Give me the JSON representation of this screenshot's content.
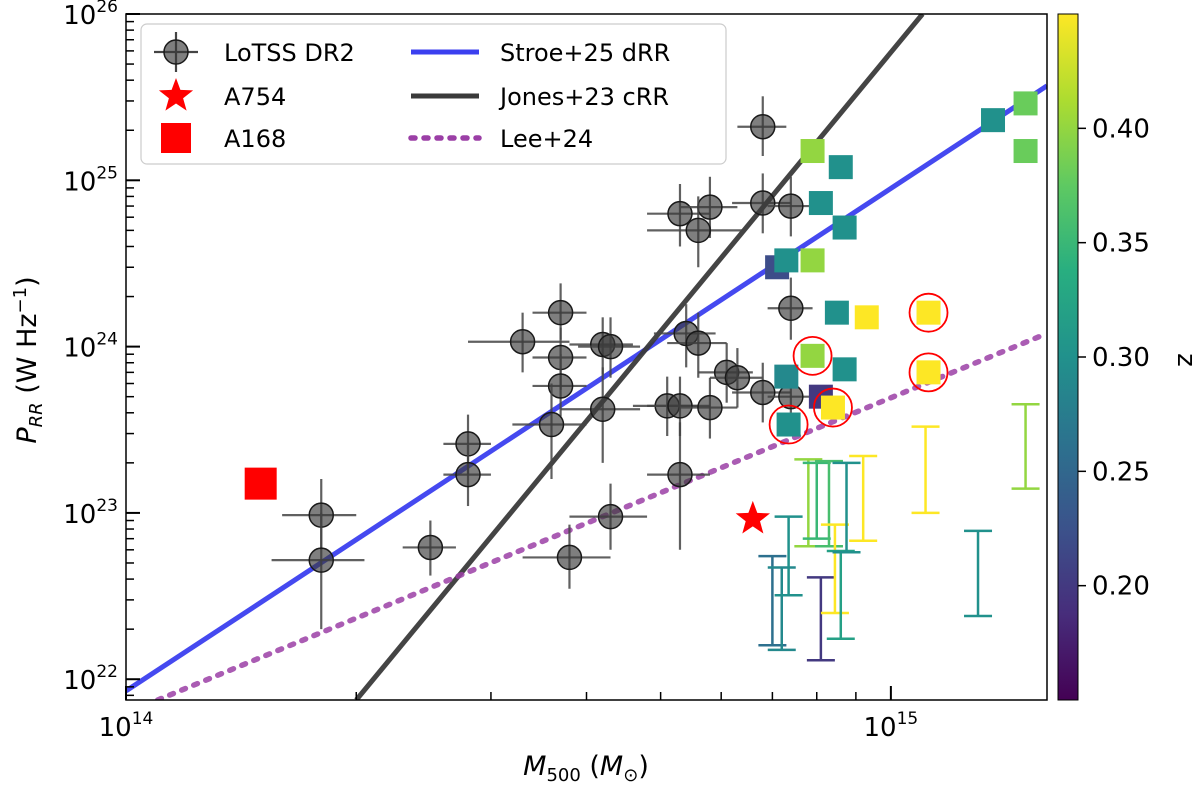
{
  "chart_data": {
    "type": "scatter",
    "xscale": "log",
    "yscale": "log",
    "xlim": [
      100000000000000.0,
      1600000000000000.0
    ],
    "ylim": [
      7.5e+21,
      1e+26
    ],
    "xlabel": "M_500 (M_⊙)",
    "ylabel": "P_RR (W Hz⁻¹)",
    "x_ticks": [
      {
        "value": 100000000000000.0,
        "base": "10",
        "exp": "14"
      },
      {
        "value": 1000000000000000.0,
        "base": "10",
        "exp": "15"
      }
    ],
    "y_ticks": [
      {
        "value": 1e+22,
        "base": "10",
        "exp": "22"
      },
      {
        "value": 1e+23,
        "base": "10",
        "exp": "23"
      },
      {
        "value": 1e+24,
        "base": "10",
        "exp": "24"
      },
      {
        "value": 1e+25,
        "base": "10",
        "exp": "25"
      },
      {
        "value": 1e+26,
        "base": "10",
        "exp": "26"
      }
    ],
    "legend": {
      "position": "top-left",
      "entries": [
        {
          "label": "LoTSS DR2",
          "marker": "circle-errorbar",
          "color": "#444444"
        },
        {
          "label": "A754",
          "marker": "star",
          "color": "#ff0000"
        },
        {
          "label": "A168",
          "marker": "square",
          "color": "#ff0000"
        },
        {
          "label": "Stroe+25 dRR",
          "marker": "line",
          "color": "#3b3fef"
        },
        {
          "label": "Jones+23 cRR",
          "marker": "line",
          "color": "#3a3a3a"
        },
        {
          "label": "Lee+24",
          "marker": "dotted",
          "color": "#9b3fa6"
        }
      ]
    },
    "colorbar": {
      "label": "z",
      "range": [
        0.15,
        0.45
      ],
      "ticks": [
        {
          "value": 0.2,
          "label": "0.20"
        },
        {
          "value": 0.25,
          "label": "0.25"
        },
        {
          "value": 0.3,
          "label": "0.30"
        },
        {
          "value": 0.35,
          "label": "0.35"
        },
        {
          "value": 0.4,
          "label": "0.40"
        }
      ]
    },
    "lines": [
      {
        "name": "Stroe+25 dRR",
        "color": "#3b3fef",
        "style": "solid",
        "points": [
          [
            100000000000000.0,
            8.5e+21
          ],
          [
            1600000000000000.0,
            3.7e+25
          ]
        ]
      },
      {
        "name": "Jones+23 cRR",
        "color": "#3a3a3a",
        "style": "solid",
        "points": [
          [
            200000000000000.0,
            7.5e+21
          ],
          [
            1100000000000000.0,
            1e+26
          ]
        ]
      },
      {
        "name": "Lee+24",
        "color": "#9b3fa6",
        "style": "dotted",
        "points": [
          [
            110000000000000.0,
            7.5e+21
          ],
          [
            1600000000000000.0,
            1.2e+24
          ]
        ]
      }
    ],
    "lotss": [
      {
        "x": 180000000000000.0,
        "y": 9.7e+22,
        "xerr": [
          160000000000000.0,
          200000000000000.0
        ],
        "yerr": [
          6e+22,
          1.6e+23
        ]
      },
      {
        "x": 180000000000000.0,
        "y": 5.2e+22,
        "xerr": [
          155000000000000.0,
          205000000000000.0
        ],
        "yerr": [
          2e+22,
          1e+23
        ]
      },
      {
        "x": 250000000000000.0,
        "y": 6.2e+22,
        "xerr": [
          230000000000000.0,
          270000000000000.0
        ],
        "yerr": [
          4.2e+22,
          9e+22
        ]
      },
      {
        "x": 280000000000000.0,
        "y": 2.6e+23,
        "xerr": [
          260000000000000.0,
          300000000000000.0
        ],
        "yerr": [
          1.7e+23,
          3.9e+23
        ]
      },
      {
        "x": 280000000000000.0,
        "y": 1.7e+23,
        "xerr": [
          260000000000000.0,
          300000000000000.0
        ],
        "yerr": [
          1.1e+23,
          2.6e+23
        ]
      },
      {
        "x": 330000000000000.0,
        "y": 1.07e+24,
        "xerr": [
          280000000000000.0,
          380000000000000.0
        ],
        "yerr": [
          7e+23,
          1.6e+24
        ]
      },
      {
        "x": 370000000000000.0,
        "y": 1.6e+24,
        "xerr": [
          340000000000000.0,
          400000000000000.0
        ],
        "yerr": [
          1.1e+24,
          2.4e+24
        ]
      },
      {
        "x": 370000000000000.0,
        "y": 8.6e+23,
        "xerr": [
          340000000000000.0,
          400000000000000.0
        ],
        "yerr": [
          5.5e+23,
          1.3e+24
        ]
      },
      {
        "x": 370000000000000.0,
        "y": 5.8e+23,
        "xerr": [
          340000000000000.0,
          400000000000000.0
        ],
        "yerr": [
          3.8e+23,
          9e+23
        ]
      },
      {
        "x": 360000000000000.0,
        "y": 3.4e+23,
        "xerr": [
          320000000000000.0,
          400000000000000.0
        ],
        "yerr": [
          1.6e+23,
          6e+23
        ]
      },
      {
        "x": 380000000000000.0,
        "y": 5.4e+22,
        "xerr": [
          330000000000000.0,
          430000000000000.0
        ],
        "yerr": [
          3.5e+22,
          8.5e+22
        ]
      },
      {
        "x": 420000000000000.0,
        "y": 1.03e+24,
        "xerr": [
          380000000000000.0,
          460000000000000.0
        ],
        "yerr": [
          6.8e+23,
          1.5e+24
        ]
      },
      {
        "x": 430000000000000.0,
        "y": 1e+24,
        "xerr": [
          390000000000000.0,
          470000000000000.0
        ],
        "yerr": [
          6.5e+23,
          1.5e+24
        ]
      },
      {
        "x": 420000000000000.0,
        "y": 4.2e+23,
        "xerr": [
          370000000000000.0,
          470000000000000.0
        ],
        "yerr": [
          2e+23,
          7.5e+23
        ]
      },
      {
        "x": 430000000000000.0,
        "y": 9.5e+22,
        "xerr": [
          380000000000000.0,
          480000000000000.0
        ],
        "yerr": [
          6e+22,
          1.5e+23
        ]
      },
      {
        "x": 510000000000000.0,
        "y": 4.4e+23,
        "xerr": [
          460000000000000.0,
          560000000000000.0
        ],
        "yerr": [
          2.9e+23,
          6.6e+23
        ]
      },
      {
        "x": 530000000000000.0,
        "y": 4.4e+23,
        "xerr": [
          480000000000000.0,
          580000000000000.0
        ],
        "yerr": [
          2.9e+23,
          6.6e+23
        ]
      },
      {
        "x": 530000000000000.0,
        "y": 1.7e+23,
        "xerr": [
          480000000000000.0,
          580000000000000.0
        ],
        "yerr": [
          6e+22,
          3.5e+23
        ]
      },
      {
        "x": 540000000000000.0,
        "y": 1.2e+24,
        "xerr": [
          490000000000000.0,
          590000000000000.0
        ],
        "yerr": [
          7.5e+23,
          1.8e+24
        ]
      },
      {
        "x": 560000000000000.0,
        "y": 1.05e+24,
        "xerr": [
          510000000000000.0,
          610000000000000.0
        ],
        "yerr": [
          6.5e+23,
          1.6e+24
        ]
      },
      {
        "x": 580000000000000.0,
        "y": 4.3e+23,
        "xerr": [
          530000000000000.0,
          630000000000000.0
        ],
        "yerr": [
          2.8e+23,
          6.5e+23
        ]
      },
      {
        "x": 530000000000000.0,
        "y": 6.3e+24,
        "xerr": [
          480000000000000.0,
          580000000000000.0
        ],
        "yerr": [
          4e+24,
          9.5e+24
        ]
      },
      {
        "x": 580000000000000.0,
        "y": 6.9e+24,
        "xerr": [
          530000000000000.0,
          630000000000000.0
        ],
        "yerr": [
          4.5e+24,
          1.05e+25
        ]
      },
      {
        "x": 560000000000000.0,
        "y": 5e+24,
        "xerr": [
          480000000000000.0,
          640000000000000.0
        ],
        "yerr": [
          3e+24,
          8e+24
        ]
      },
      {
        "x": 610000000000000.0,
        "y": 7e+23,
        "xerr": [
          560000000000000.0,
          660000000000000.0
        ],
        "yerr": [
          4.6e+23,
          1.05e+24
        ]
      },
      {
        "x": 630000000000000.0,
        "y": 6.5e+23,
        "xerr": [
          580000000000000.0,
          680000000000000.0
        ],
        "yerr": [
          4.3e+23,
          9.8e+23
        ]
      },
      {
        "x": 680000000000000.0,
        "y": 5.3e+23,
        "xerr": [
          620000000000000.0,
          740000000000000.0
        ],
        "yerr": [
          3.5e+23,
          8e+23
        ]
      },
      {
        "x": 680000000000000.0,
        "y": 2.1e+25,
        "xerr": [
          630000000000000.0,
          730000000000000.0
        ],
        "yerr": [
          1.4e+25,
          3.2e+25
        ]
      },
      {
        "x": 680000000000000.0,
        "y": 7.3e+24,
        "xerr": [
          620000000000000.0,
          740000000000000.0
        ],
        "yerr": [
          4.8e+24,
          1.1e+25
        ]
      },
      {
        "x": 740000000000000.0,
        "y": 7e+24,
        "xerr": [
          690000000000000.0,
          790000000000000.0
        ],
        "yerr": [
          4.6e+24,
          1.05e+25
        ]
      },
      {
        "x": 740000000000000.0,
        "y": 1.7e+24,
        "xerr": [
          690000000000000.0,
          790000000000000.0
        ],
        "yerr": [
          1.1e+24,
          2.6e+24
        ]
      },
      {
        "x": 740000000000000.0,
        "y": 5e+23,
        "xerr": [
          690000000000000.0,
          790000000000000.0
        ],
        "yerr": [
          3.3e+23,
          7.5e+23
        ]
      }
    ],
    "squares": [
      {
        "x": 150000000000000.0,
        "y": 1.5e+23,
        "z": null,
        "color": "#ff0000"
      },
      {
        "x": 710000000000000.0,
        "y": 3e+24,
        "z": 0.22
      },
      {
        "x": 730000000000000.0,
        "y": 3.3e+24,
        "z": 0.3
      },
      {
        "x": 730000000000000.0,
        "y": 6.6e+23,
        "z": 0.29
      },
      {
        "x": 735000000000000.0,
        "y": 3.4e+23,
        "z": 0.3
      },
      {
        "x": 790000000000000.0,
        "y": 1.5e+25,
        "z": 0.4
      },
      {
        "x": 790000000000000.0,
        "y": 3.3e+24,
        "z": 0.4
      },
      {
        "x": 790000000000000.0,
        "y": 8.8e+23,
        "z": 0.4
      },
      {
        "x": 810000000000000.0,
        "y": 7.3e+24,
        "z": 0.3
      },
      {
        "x": 810000000000000.0,
        "y": 5e+23,
        "z": 0.2
      },
      {
        "x": 840000000000000.0,
        "y": 4.3e+23,
        "z": 0.45
      },
      {
        "x": 850000000000000.0,
        "y": 1.6e+24,
        "z": 0.3
      },
      {
        "x": 860000000000000.0,
        "y": 1.2e+25,
        "z": 0.3
      },
      {
        "x": 870000000000000.0,
        "y": 5.2e+24,
        "z": 0.3
      },
      {
        "x": 870000000000000.0,
        "y": 7.3e+23,
        "z": 0.3
      },
      {
        "x": 930000000000000.0,
        "y": 1.5e+24,
        "z": 0.45
      },
      {
        "x": 1120000000000000.0,
        "y": 1.6e+24,
        "z": 0.45
      },
      {
        "x": 1120000000000000.0,
        "y": 7e+23,
        "z": 0.45
      },
      {
        "x": 1360000000000000.0,
        "y": 2.3e+25,
        "z": 0.3
      },
      {
        "x": 1500000000000000.0,
        "y": 2.9e+25,
        "z": 0.38
      },
      {
        "x": 1500000000000000.0,
        "y": 1.5e+25,
        "z": 0.38
      }
    ],
    "circled": [
      {
        "x": 735000000000000.0,
        "y": 3.4e+23
      },
      {
        "x": 790000000000000.0,
        "y": 8.8e+23
      },
      {
        "x": 840000000000000.0,
        "y": 4.3e+23
      },
      {
        "x": 1120000000000000.0,
        "y": 1.6e+24
      },
      {
        "x": 1120000000000000.0,
        "y": 7e+23
      }
    ],
    "a754": {
      "label": "A754",
      "x": 660000000000000.0,
      "y": 9.2e+22
    },
    "upper_limits": [
      {
        "x": 700000000000000.0,
        "low": 1.6e+22,
        "high": 5.5e+22,
        "z": 0.26
      },
      {
        "x": 720000000000000.0,
        "low": 1.5e+22,
        "high": 4.7e+22,
        "z": 0.29
      },
      {
        "x": 735000000000000.0,
        "low": 3.2e+22,
        "high": 9.5e+22,
        "z": 0.3
      },
      {
        "x": 780000000000000.0,
        "low": 6.3e+22,
        "high": 2.1e+23,
        "z": 0.4
      },
      {
        "x": 800000000000000.0,
        "low": 7e+22,
        "high": 2e+23,
        "z": 0.35
      },
      {
        "x": 810000000000000.0,
        "low": 1.3e+22,
        "high": 4.1e+22,
        "z": 0.2
      },
      {
        "x": 830000000000000.0,
        "low": 6.3e+22,
        "high": 2.05e+23,
        "z": 0.36
      },
      {
        "x": 845000000000000.0,
        "low": 2.5e+22,
        "high": 8.5e+22,
        "z": 0.45
      },
      {
        "x": 860000000000000.0,
        "low": 1.75e+22,
        "high": 5.9e+22,
        "z": 0.32
      },
      {
        "x": 875000000000000.0,
        "low": 5.8e+22,
        "high": 2e+23,
        "z": 0.3
      },
      {
        "x": 920000000000000.0,
        "low": 6.8e+22,
        "high": 2.2e+23,
        "z": 0.45
      },
      {
        "x": 1110000000000000.0,
        "low": 1e+23,
        "high": 3.3e+23,
        "z": 0.45
      },
      {
        "x": 1300000000000000.0,
        "low": 2.4e+22,
        "high": 7.8e+22,
        "z": 0.3
      },
      {
        "x": 1500000000000000.0,
        "low": 1.4e+23,
        "high": 4.5e+23,
        "z": 0.4
      }
    ]
  }
}
